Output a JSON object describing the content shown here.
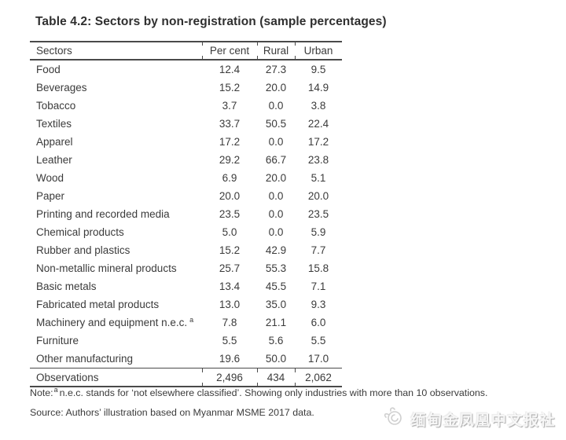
{
  "title": "Table 4.2: Sectors by non-registration (sample percentages)",
  "table": {
    "headers": [
      "Sectors",
      "Per cent",
      "Rural",
      "Urban"
    ],
    "rows": [
      {
        "sector": "Food",
        "per_cent": "12.4",
        "rural": "27.3",
        "urban": "9.5"
      },
      {
        "sector": "Beverages",
        "per_cent": "15.2",
        "rural": "20.0",
        "urban": "14.9"
      },
      {
        "sector": "Tobacco",
        "per_cent": "3.7",
        "rural": "0.0",
        "urban": "3.8"
      },
      {
        "sector": "Textiles",
        "per_cent": "33.7",
        "rural": "50.5",
        "urban": "22.4"
      },
      {
        "sector": "Apparel",
        "per_cent": "17.2",
        "rural": "0.0",
        "urban": "17.2"
      },
      {
        "sector": "Leather",
        "per_cent": "29.2",
        "rural": "66.7",
        "urban": "23.8"
      },
      {
        "sector": "Wood",
        "per_cent": "6.9",
        "rural": "20.0",
        "urban": "5.1"
      },
      {
        "sector": "Paper",
        "per_cent": "20.0",
        "rural": "0.0",
        "urban": "20.0"
      },
      {
        "sector": "Printing and recorded media",
        "per_cent": "23.5",
        "rural": "0.0",
        "urban": "23.5"
      },
      {
        "sector": "Chemical products",
        "per_cent": "5.0",
        "rural": "0.0",
        "urban": "5.9"
      },
      {
        "sector": "Rubber and plastics",
        "per_cent": "15.2",
        "rural": "42.9",
        "urban": "7.7"
      },
      {
        "sector": "Non-metallic mineral products",
        "per_cent": "25.7",
        "rural": "55.3",
        "urban": "15.8"
      },
      {
        "sector": "Basic metals",
        "per_cent": "13.4",
        "rural": "45.5",
        "urban": "7.1"
      },
      {
        "sector": "Fabricated metal products",
        "per_cent": "13.0",
        "rural": "35.0",
        "urban": "9.3"
      },
      {
        "sector": "Machinery and equipment n.e.c.",
        "sup": "a",
        "per_cent": "7.8",
        "rural": "21.1",
        "urban": "6.0"
      },
      {
        "sector": "Furniture",
        "per_cent": "5.5",
        "rural": "5.6",
        "urban": "5.5"
      },
      {
        "sector": "Other manufacturing",
        "per_cent": "19.6",
        "rural": "50.0",
        "urban": "17.0"
      }
    ],
    "footer": {
      "label": "Observations",
      "per_cent": "2,496",
      "rural": "434",
      "urban": "2,062"
    }
  },
  "note": {
    "prefix": "Note:",
    "sup": "a",
    "text": "n.e.c. stands for ‘not elsewhere classified’. Showing only industries with more than 10 observations."
  },
  "source": "Source: Authors’ illustration based on Myanmar MSME 2017 data.",
  "watermark": {
    "logo": "phoenix-logo",
    "text": "缅甸金凤凰中文报社"
  },
  "colors": {
    "text": "#3b3b3b",
    "rule": "#4a4a4a",
    "background": "#ffffff",
    "watermark": "#f7f7f7"
  }
}
